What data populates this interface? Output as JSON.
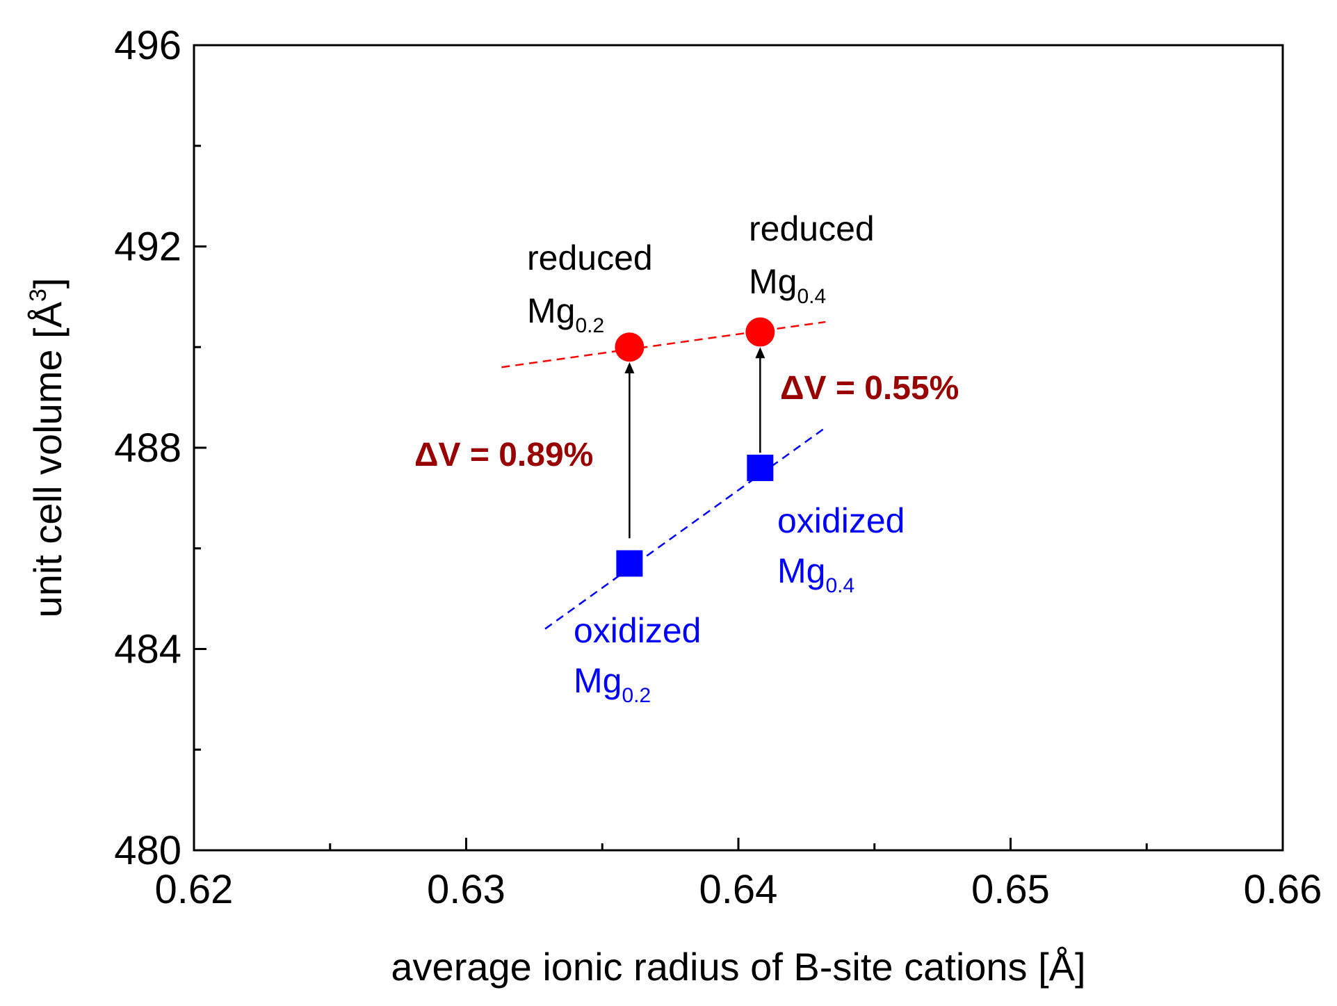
{
  "chart_data": {
    "type": "scatter",
    "title": "",
    "xlabel": "average ionic radius of B-site cations [Å]",
    "ylabel_main": "unit cell volume [Å",
    "ylabel_sup": "3",
    "ylabel_end": "]",
    "xlim": [
      0.62,
      0.66
    ],
    "ylim": [
      480,
      496
    ],
    "x_ticks": [
      0.62,
      0.63,
      0.64,
      0.65,
      0.66
    ],
    "x_tick_labels": [
      "0.62",
      "0.63",
      "0.64",
      "0.65",
      "0.66"
    ],
    "x_minor_ticks": [
      0.625,
      0.635,
      0.645,
      0.655
    ],
    "y_ticks": [
      480,
      484,
      488,
      492,
      496
    ],
    "y_tick_labels": [
      "480",
      "484",
      "488",
      "492",
      "496"
    ],
    "y_minor_ticks": [
      482,
      486,
      490,
      494
    ],
    "series": [
      {
        "name": "reduced",
        "color": "#ff0000",
        "marker": "circle",
        "points": [
          {
            "x": 0.636,
            "y": 490.0
          },
          {
            "x": 0.6408,
            "y": 490.3
          }
        ],
        "fit_line": {
          "x": [
            0.6313,
            0.6432
          ],
          "y": [
            489.6,
            490.5
          ]
        }
      },
      {
        "name": "oxidized",
        "color": "#0000ff",
        "marker": "square",
        "points": [
          {
            "x": 0.636,
            "y": 485.7
          },
          {
            "x": 0.6408,
            "y": 487.6
          }
        ],
        "fit_line": {
          "x": [
            0.6329,
            0.6432
          ],
          "y": [
            484.4,
            488.4
          ]
        }
      }
    ],
    "arrows": [
      {
        "x": 0.636,
        "y_from": 486.2,
        "y_to": 489.7
      },
      {
        "x": 0.6408,
        "y_from": 487.9,
        "y_to": 490.0
      }
    ],
    "annotations": {
      "reduced_02": {
        "line1": "reduced",
        "base": "Mg",
        "sub": "0.2"
      },
      "reduced_04": {
        "line1": "reduced",
        "base": "Mg",
        "sub": "0.4"
      },
      "oxidized_02": {
        "line1": "oxidized",
        "base": "Mg",
        "sub": "0.2"
      },
      "oxidized_04": {
        "line1": "oxidized",
        "base": "Mg",
        "sub": "0.4"
      },
      "delta_02": "ΔV = 0.89%",
      "delta_04": "ΔV = 0.55%"
    },
    "colors": {
      "reduced": "#ff0000",
      "oxidized": "#0000ff",
      "delta": "#990000",
      "axis": "#000000"
    }
  }
}
